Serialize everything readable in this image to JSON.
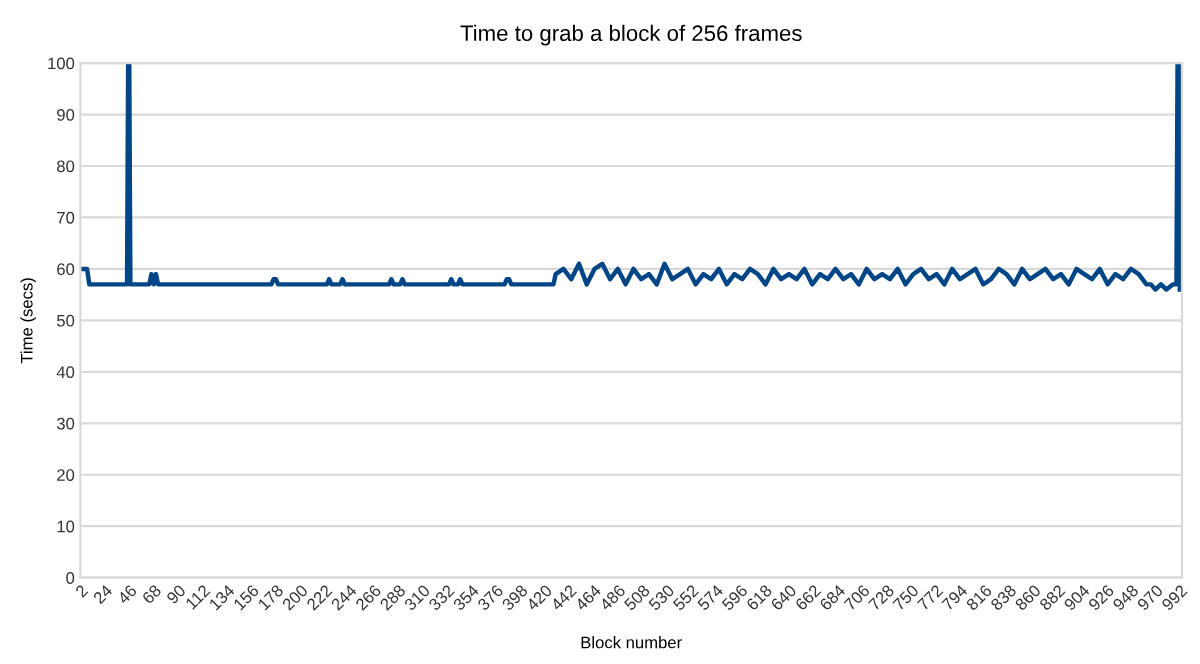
{
  "chart_data": {
    "type": "line",
    "title": "Time to grab a block of 256 frames",
    "xlabel": "Block number",
    "ylabel": "Time (secs)",
    "xlim": [
      2,
      994
    ],
    "xticks": [
      2,
      24,
      46,
      68,
      90,
      112,
      134,
      156,
      178,
      200,
      222,
      244,
      266,
      288,
      310,
      332,
      354,
      376,
      398,
      420,
      442,
      464,
      486,
      508,
      530,
      552,
      574,
      596,
      618,
      640,
      662,
      684,
      706,
      728,
      750,
      772,
      794,
      816,
      838,
      860,
      882,
      904,
      926,
      948,
      970,
      992
    ],
    "ylim": [
      0,
      100
    ],
    "yticks": [
      0,
      10,
      20,
      30,
      40,
      50,
      60,
      70,
      80,
      90,
      100
    ],
    "grid": "y",
    "marker": "none",
    "line_style": "solid",
    "series": [
      {
        "color": "#004586",
        "x": [
          2,
          8,
          10,
          44,
          45,
          46,
          47,
          64,
          66,
          68,
          70,
          72,
          74,
          174,
          176,
          178,
          180,
          224,
          226,
          228,
          236,
          238,
          240,
          280,
          282,
          284,
          290,
          292,
          294,
          334,
          336,
          338,
          342,
          344,
          346,
          384,
          386,
          388,
          390,
          428,
          430,
          437,
          444,
          451,
          458,
          465,
          472,
          479,
          486,
          493,
          500,
          507,
          514,
          521,
          528,
          535,
          542,
          549,
          556,
          563,
          570,
          577,
          584,
          591,
          598,
          605,
          612,
          619,
          626,
          633,
          640,
          647,
          654,
          661,
          668,
          675,
          682,
          689,
          696,
          703,
          710,
          717,
          724,
          731,
          738,
          745,
          752,
          759,
          766,
          773,
          780,
          787,
          794,
          801,
          808,
          815,
          822,
          829,
          836,
          843,
          850,
          857,
          864,
          871,
          878,
          885,
          892,
          899,
          906,
          913,
          920,
          927,
          934,
          941,
          948,
          955,
          962,
          966,
          970,
          975,
          980,
          986,
          989,
          990,
          991,
          992
        ],
        "values": [
          60,
          60,
          57,
          57,
          100,
          100,
          57,
          57,
          59,
          57,
          59,
          57,
          57,
          57,
          58,
          58,
          57,
          57,
          58,
          57,
          57,
          58,
          57,
          57,
          58,
          57,
          57,
          58,
          57,
          57,
          58,
          57,
          57,
          58,
          57,
          57,
          58,
          58,
          57,
          57,
          59,
          60,
          58,
          61,
          57,
          60,
          61,
          58,
          60,
          57,
          60,
          58,
          59,
          57,
          61,
          58,
          59,
          60,
          57,
          59,
          58,
          60,
          57,
          59,
          58,
          60,
          59,
          57,
          60,
          58,
          59,
          58,
          60,
          57,
          59,
          58,
          60,
          58,
          59,
          57,
          60,
          58,
          59,
          58,
          60,
          57,
          59,
          60,
          58,
          59,
          57,
          60,
          58,
          59,
          60,
          57,
          58,
          60,
          59,
          57,
          60,
          58,
          59,
          60,
          58,
          59,
          57,
          60,
          59,
          58,
          60,
          57,
          59,
          58,
          60,
          59,
          57,
          57,
          56,
          57,
          56,
          57,
          57,
          100,
          100,
          56
        ]
      }
    ]
  }
}
